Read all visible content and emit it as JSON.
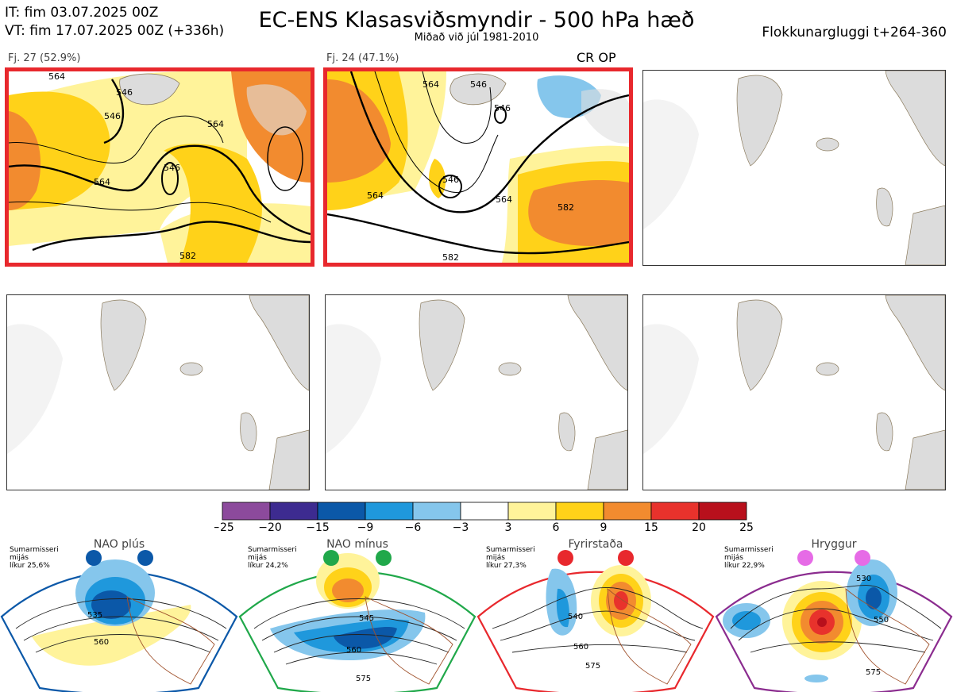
{
  "header": {
    "init_time": "IT: fim 03.07.2025 00Z",
    "valid_time": "VT: fim 17.07.2025 00Z  (+336h)",
    "title": "EC-ENS Klasasviðsmyndir - 500 hPa hæð",
    "subtitle": "Miðað við júl 1981-2010",
    "cluster_window": "Flokkunargluggi t+264-360"
  },
  "panels": [
    {
      "label": "Fj. 27 (52.9%)",
      "members": 27,
      "percent": 52.9,
      "selected": true,
      "contours": [
        "546",
        "546",
        "564",
        "564",
        "564",
        "546",
        "582"
      ]
    },
    {
      "label": "Fj. 24 (47.1%)",
      "members": 24,
      "percent": 47.1,
      "selected": true,
      "badge": "CR OP",
      "contours": [
        "564",
        "546",
        "546",
        "546",
        "564",
        "564",
        "582",
        "582"
      ]
    },
    {
      "label": "",
      "selected": false
    },
    {
      "label": "",
      "selected": false
    },
    {
      "label": "",
      "selected": false
    },
    {
      "label": "",
      "selected": false
    }
  ],
  "colorbar": {
    "ticks": [
      "−25",
      "−20",
      "−15",
      "−9",
      "−6",
      "−3",
      "3",
      "6",
      "9",
      "15",
      "20",
      "25"
    ],
    "colors": [
      "#8c4a9c",
      "#3d2b90",
      "#0b58a8",
      "#1f98dc",
      "#85c6ec",
      "#ffffff",
      "#fff39a",
      "#ffd219",
      "#f28b2f",
      "#e8322c",
      "#b8101c"
    ]
  },
  "regimes": [
    {
      "name": "NAO plús",
      "info": "Sumarmisseri\nmijás\nlíkur 25,6%",
      "probability": 25.6,
      "color": "#0b58a8",
      "contours": [
        "535",
        "560"
      ]
    },
    {
      "name": "NAO mínus",
      "info": "Sumarmisseri\nmijás\nlíkur 24,2%",
      "probability": 24.2,
      "color": "#20a84a",
      "contours": [
        "545",
        "560",
        "575"
      ]
    },
    {
      "name": "Fyrirstaða",
      "info": "Sumarmisseri\nmijás\nlíkur 27,3%",
      "probability": 27.3,
      "color": "#e8282d",
      "contours": [
        "540",
        "560",
        "575"
      ]
    },
    {
      "name": "Hryggur",
      "info": "Sumarmisseri\nmijás\nlíkur 22,9%",
      "probability": 22.9,
      "color": "#8b2c8f",
      "contours": [
        "530",
        "550",
        "575"
      ]
    }
  ]
}
